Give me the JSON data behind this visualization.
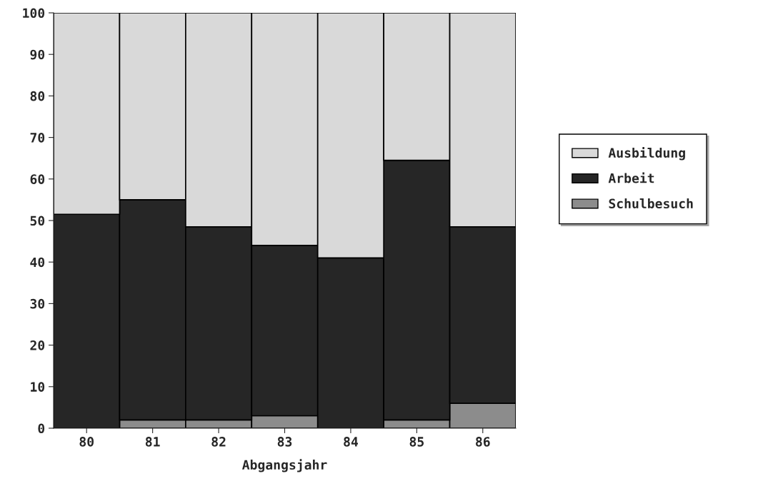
{
  "chart_data": {
    "type": "bar",
    "stacked": true,
    "xlabel": "Abgangsjahr",
    "categories": [
      "80",
      "81",
      "82",
      "83",
      "84",
      "85",
      "86"
    ],
    "series": [
      {
        "name": "Schulbesuch",
        "color": "#8c8c8c",
        "values": [
          null,
          2,
          2,
          3,
          null,
          2,
          6
        ]
      },
      {
        "name": "Arbeit",
        "color": "#262626",
        "values": [
          51.5,
          53,
          46.5,
          41,
          41,
          62.5,
          42.5
        ]
      },
      {
        "name": "Ausbildung",
        "color": "#d9d9d9",
        "values": [
          48.5,
          45,
          51.5,
          56,
          59,
          35.5,
          51.5
        ]
      }
    ],
    "ylim": [
      0,
      100
    ],
    "yticks": [
      0,
      10,
      20,
      30,
      40,
      50,
      60,
      70,
      80,
      90,
      100
    ],
    "legend": "right"
  }
}
